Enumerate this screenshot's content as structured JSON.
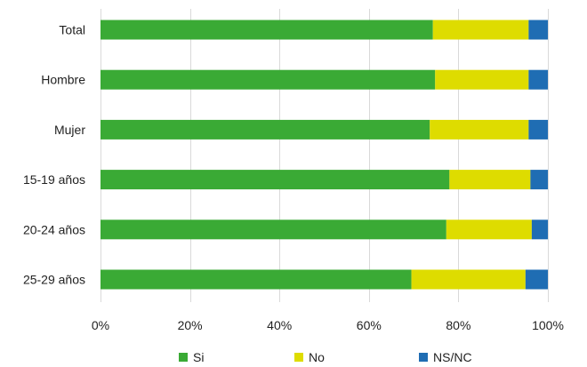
{
  "chart_data": {
    "type": "bar",
    "orientation": "horizontal",
    "stacked": "percent",
    "title": "",
    "xlabel": "",
    "ylabel": "",
    "categories": [
      "Total",
      "Hombre",
      "Mujer",
      "15-19 años",
      "20-24 años",
      "25-29 años"
    ],
    "series": [
      {
        "name": "Si",
        "color": "#3aaa35",
        "values": [
          74.3,
          74.8,
          73.6,
          78.0,
          77.3,
          69.5
        ]
      },
      {
        "name": "No",
        "color": "#dedc00",
        "values": [
          21.4,
          20.9,
          22.1,
          18.1,
          19.1,
          25.5
        ]
      },
      {
        "name": "NS/NC",
        "color": "#1f6db3",
        "values": [
          4.3,
          4.3,
          4.3,
          3.9,
          3.6,
          5.0
        ]
      }
    ],
    "xlim": [
      0,
      100
    ],
    "xticks": [
      0,
      20,
      40,
      60,
      80,
      100
    ],
    "xtick_labels": [
      "0%",
      "20%",
      "40%",
      "60%",
      "80%",
      "100%"
    ],
    "grid": "vertical",
    "legend_position": "bottom"
  }
}
